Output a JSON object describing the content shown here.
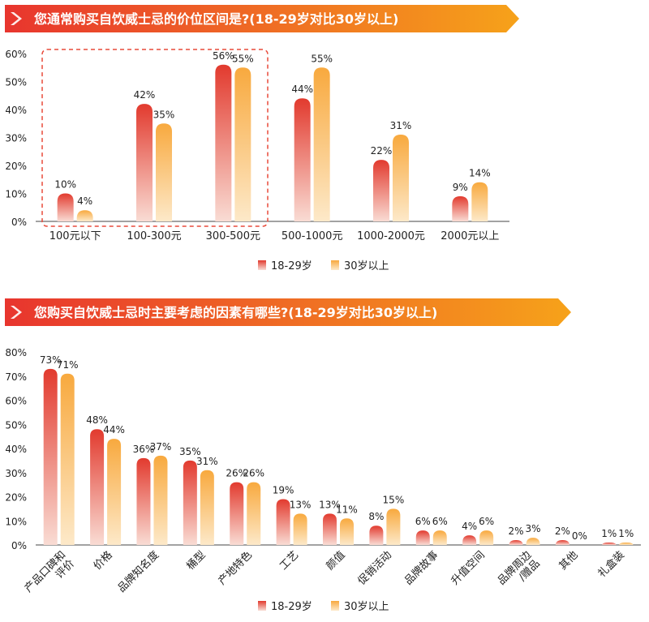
{
  "colors": {
    "series_18_29_top": "#e23a2e",
    "series_18_29_bottom": "#f9dcd4",
    "series_30_top": "#f8a93e",
    "series_30_bottom": "#fde9c9",
    "banner_start": "#e8352e",
    "banner_end": "#f6a21a",
    "highlight_box": "#e84a3a"
  },
  "legend": {
    "series_a": "18-29岁",
    "series_b": "30岁以上"
  },
  "chart_data": [
    {
      "type": "bar",
      "title": "您通常购买自饮威士忌的价位区间是?(18-29岁对比30岁以上)",
      "categories": [
        "100元以下",
        "100-300元",
        "300-500元",
        "500-1000元",
        "1000-2000元",
        "2000元以上"
      ],
      "series": [
        {
          "name": "18-29岁",
          "values": [
            10,
            42,
            56,
            44,
            22,
            9
          ]
        },
        {
          "name": "30岁以上",
          "values": [
            4,
            35,
            55,
            55,
            31,
            14
          ]
        }
      ],
      "value_labels": [
        [
          "10%",
          "42%",
          "56%",
          "44%",
          "22%",
          "9%"
        ],
        [
          "4%",
          "35%",
          "55%",
          "55%",
          "31%",
          "14%"
        ]
      ],
      "yticks": [
        "0%",
        "10%",
        "20%",
        "30%",
        "40%",
        "50%",
        "60%"
      ],
      "ylim": [
        0,
        60
      ],
      "legend_position": "bottom",
      "highlighted_categories": [
        "100元以下",
        "100-300元",
        "300-500元"
      ]
    },
    {
      "type": "bar",
      "title": "您购买自饮威士忌时主要考虑的因素有哪些?(18-29岁对比30岁以上)",
      "categories": [
        "产品口碑和评价",
        "价格",
        "品牌知名度",
        "桶型",
        "产地特色",
        "工艺",
        "颜值",
        "促销活动",
        "品牌故事",
        "升值空间",
        "品牌周边/赠品",
        "其他",
        "礼盒装"
      ],
      "series": [
        {
          "name": "18-29岁",
          "values": [
            73,
            48,
            36,
            35,
            26,
            19,
            13,
            8,
            6,
            4,
            2,
            2,
            1
          ]
        },
        {
          "name": "30岁以上",
          "values": [
            71,
            44,
            37,
            31,
            26,
            13,
            11,
            15,
            6,
            6,
            3,
            0,
            1
          ]
        }
      ],
      "value_labels": [
        [
          "73%",
          "48%",
          "36%",
          "35%",
          "26%",
          "19%",
          "13%",
          "8%",
          "6%",
          "4%",
          "2%",
          "2%",
          "1%"
        ],
        [
          "71%",
          "44%",
          "37%",
          "31%",
          "26%",
          "13%",
          "11%",
          "15%",
          "6%",
          "6%",
          "3%",
          "0%",
          "1%"
        ]
      ],
      "yticks": [
        "0%",
        "10%",
        "20%",
        "30%",
        "40%",
        "50%",
        "60%",
        "70%",
        "80%"
      ],
      "ylim": [
        0,
        80
      ],
      "legend_position": "bottom"
    }
  ]
}
